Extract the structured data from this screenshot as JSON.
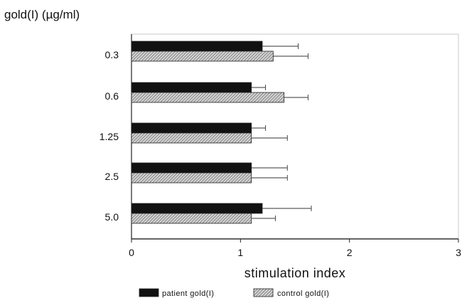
{
  "chart_data": {
    "type": "bar",
    "orientation": "horizontal",
    "title": "gold(I) (µg/ml)",
    "xlabel": "stimulation index",
    "ylabel": "",
    "xlim": [
      0,
      3
    ],
    "x_ticks": [
      "0",
      "1",
      "2",
      "3"
    ],
    "categories": [
      "0.3",
      "0.6",
      "1.25",
      "2.5",
      "5.0"
    ],
    "series": [
      {
        "name": "patient gold(I)",
        "values": [
          1.2,
          1.1,
          1.1,
          1.1,
          1.2
        ],
        "error": [
          0.33,
          0.13,
          0.13,
          0.33,
          0.45
        ],
        "color": "#111111",
        "pattern": "solid"
      },
      {
        "name": "control gold(I)",
        "values": [
          1.3,
          1.4,
          1.1,
          1.1,
          1.1
        ],
        "error": [
          0.32,
          0.22,
          0.33,
          0.33,
          0.22
        ],
        "color": "#888888",
        "pattern": "hatched"
      }
    ],
    "grid": false,
    "legend_position": "bottom"
  }
}
